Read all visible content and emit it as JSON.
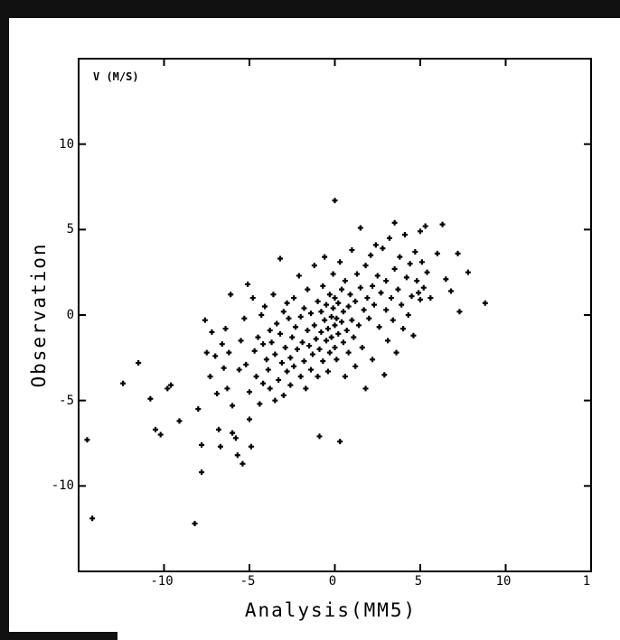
{
  "chart_data": {
    "type": "scatter",
    "title": "V (M/S)",
    "xlabel": "Analysis(MM5)",
    "ylabel": "Observation",
    "xlim": [
      -15,
      15
    ],
    "ylim": [
      -15,
      15
    ],
    "xticks": [
      -10,
      -5,
      0,
      5,
      10
    ],
    "xtick_labels": [
      "-10",
      "-5",
      "0",
      "5",
      "10"
    ],
    "edge_label": "1",
    "yticks": [
      -10,
      -5,
      0,
      5,
      10
    ],
    "ytick_labels": [
      "-10",
      "-5",
      "0",
      "5",
      "10"
    ],
    "grid": false,
    "marker_color": "#000000",
    "points": [
      [
        -14.5,
        -7.3
      ],
      [
        -14.2,
        -11.9
      ],
      [
        -12.4,
        -4.0
      ],
      [
        -11.5,
        -2.8
      ],
      [
        -10.8,
        -4.9
      ],
      [
        -10.5,
        -6.7
      ],
      [
        -10.2,
        -7.0
      ],
      [
        -9.8,
        -4.3
      ],
      [
        -9.6,
        -4.1
      ],
      [
        -9.1,
        -6.2
      ],
      [
        -8.2,
        -12.2
      ],
      [
        -8.0,
        -5.5
      ],
      [
        -7.8,
        -7.6
      ],
      [
        -7.8,
        -9.2
      ],
      [
        -7.6,
        -0.3
      ],
      [
        -7.5,
        -2.2
      ],
      [
        -7.3,
        -3.6
      ],
      [
        -7.2,
        -1.0
      ],
      [
        -7.0,
        -2.4
      ],
      [
        -6.9,
        -4.6
      ],
      [
        -6.8,
        -6.7
      ],
      [
        -6.7,
        -7.7
      ],
      [
        -6.6,
        -1.7
      ],
      [
        -6.5,
        -3.1
      ],
      [
        -6.4,
        -0.8
      ],
      [
        -6.3,
        -4.3
      ],
      [
        -6.2,
        -2.2
      ],
      [
        -6.1,
        1.2
      ],
      [
        -6.0,
        -5.3
      ],
      [
        -6.0,
        -6.9
      ],
      [
        -5.8,
        -7.2
      ],
      [
        -5.7,
        -8.2
      ],
      [
        -5.6,
        -3.2
      ],
      [
        -5.5,
        -1.5
      ],
      [
        -5.4,
        -8.7
      ],
      [
        -5.3,
        -0.2
      ],
      [
        -5.2,
        -2.9
      ],
      [
        -5.1,
        1.8
      ],
      [
        -5.0,
        -4.5
      ],
      [
        -5.0,
        -6.1
      ],
      [
        -4.9,
        -7.7
      ],
      [
        -4.8,
        1.0
      ],
      [
        -4.7,
        -2.1
      ],
      [
        -4.6,
        -3.6
      ],
      [
        -4.5,
        -1.3
      ],
      [
        -4.4,
        -5.2
      ],
      [
        -4.3,
        0.0
      ],
      [
        -4.2,
        -4.0
      ],
      [
        -4.2,
        -1.7
      ],
      [
        -4.1,
        0.5
      ],
      [
        -4.0,
        -2.6
      ],
      [
        -3.9,
        -3.2
      ],
      [
        -3.8,
        -4.3
      ],
      [
        -3.8,
        -0.9
      ],
      [
        -3.7,
        -1.6
      ],
      [
        -3.6,
        1.2
      ],
      [
        -3.5,
        -5.0
      ],
      [
        -3.5,
        -2.3
      ],
      [
        -3.4,
        -0.5
      ],
      [
        -3.3,
        -3.8
      ],
      [
        -3.2,
        3.3
      ],
      [
        -3.2,
        -1.1
      ],
      [
        -3.1,
        -2.8
      ],
      [
        -3.0,
        0.2
      ],
      [
        -3.0,
        -4.7
      ],
      [
        -2.9,
        -1.9
      ],
      [
        -2.8,
        -3.3
      ],
      [
        -2.8,
        0.7
      ],
      [
        -2.7,
        -0.2
      ],
      [
        -2.6,
        -2.5
      ],
      [
        -2.6,
        -4.1
      ],
      [
        -2.5,
        -1.3
      ],
      [
        -2.4,
        1.0
      ],
      [
        -2.4,
        -3.0
      ],
      [
        -2.3,
        -0.7
      ],
      [
        -2.2,
        -2.0
      ],
      [
        -2.1,
        2.3
      ],
      [
        -2.0,
        -3.6
      ],
      [
        -2.0,
        -0.1
      ],
      [
        -1.9,
        -1.6
      ],
      [
        -1.8,
        0.4
      ],
      [
        -1.8,
        -2.7
      ],
      [
        -1.7,
        -4.3
      ],
      [
        -1.6,
        -0.9
      ],
      [
        -1.6,
        1.5
      ],
      [
        -1.5,
        -1.8
      ],
      [
        -1.4,
        -3.2
      ],
      [
        -1.4,
        0.1
      ],
      [
        -1.3,
        -2.3
      ],
      [
        -1.2,
        2.9
      ],
      [
        -1.2,
        -0.6
      ],
      [
        -1.1,
        -1.4
      ],
      [
        -1.0,
        0.8
      ],
      [
        -1.0,
        -3.6
      ],
      [
        -0.9,
        -2.0
      ],
      [
        -0.9,
        -7.1
      ],
      [
        -0.8,
        0.2
      ],
      [
        -0.8,
        -1.0
      ],
      [
        -0.7,
        1.7
      ],
      [
        -0.7,
        -2.7
      ],
      [
        -0.6,
        -0.3
      ],
      [
        -0.6,
        3.4
      ],
      [
        -0.5,
        -1.5
      ],
      [
        -0.5,
        0.6
      ],
      [
        -0.4,
        -3.3
      ],
      [
        -0.4,
        -0.8
      ],
      [
        -0.3,
        1.2
      ],
      [
        -0.3,
        -2.2
      ],
      [
        -0.2,
        -0.1
      ],
      [
        -0.2,
        -1.3
      ],
      [
        -0.1,
        2.4
      ],
      [
        -0.1,
        0.4
      ],
      [
        0.0,
        6.7
      ],
      [
        0.0,
        -0.6
      ],
      [
        0.0,
        -1.9
      ],
      [
        0.0,
        1.0
      ],
      [
        0.1,
        -0.2
      ],
      [
        0.1,
        -2.6
      ],
      [
        0.2,
        0.7
      ],
      [
        0.2,
        -1.1
      ],
      [
        0.3,
        3.1
      ],
      [
        0.3,
        -7.4
      ],
      [
        0.4,
        -0.4
      ],
      [
        0.4,
        1.5
      ],
      [
        0.5,
        -1.6
      ],
      [
        0.5,
        0.2
      ],
      [
        0.6,
        -3.6
      ],
      [
        0.6,
        2.0
      ],
      [
        0.7,
        -0.9
      ],
      [
        0.8,
        0.5
      ],
      [
        0.8,
        -2.2
      ],
      [
        0.9,
        1.2
      ],
      [
        1.0,
        -0.3
      ],
      [
        1.0,
        3.8
      ],
      [
        1.1,
        -1.3
      ],
      [
        1.2,
        0.8
      ],
      [
        1.2,
        -3.0
      ],
      [
        1.3,
        2.4
      ],
      [
        1.4,
        -0.6
      ],
      [
        1.5,
        1.6
      ],
      [
        1.5,
        5.1
      ],
      [
        1.6,
        -1.9
      ],
      [
        1.7,
        0.3
      ],
      [
        1.8,
        2.9
      ],
      [
        1.8,
        -4.3
      ],
      [
        1.9,
        1.0
      ],
      [
        2.0,
        -0.2
      ],
      [
        2.1,
        3.5
      ],
      [
        2.2,
        1.7
      ],
      [
        2.2,
        -2.6
      ],
      [
        2.3,
        0.6
      ],
      [
        2.4,
        4.1
      ],
      [
        2.5,
        2.3
      ],
      [
        2.6,
        -0.7
      ],
      [
        2.7,
        1.3
      ],
      [
        2.8,
        3.9
      ],
      [
        2.9,
        -3.5
      ],
      [
        3.0,
        0.3
      ],
      [
        3.0,
        2.0
      ],
      [
        3.1,
        -1.5
      ],
      [
        3.2,
        4.5
      ],
      [
        3.3,
        1.0
      ],
      [
        3.4,
        -0.3
      ],
      [
        3.5,
        5.4
      ],
      [
        3.5,
        2.7
      ],
      [
        3.6,
        -2.2
      ],
      [
        3.7,
        1.5
      ],
      [
        3.8,
        3.4
      ],
      [
        3.9,
        0.6
      ],
      [
        4.0,
        -0.8
      ],
      [
        4.1,
        4.7
      ],
      [
        4.2,
        2.2
      ],
      [
        4.3,
        0.0
      ],
      [
        4.4,
        3.0
      ],
      [
        4.5,
        1.1
      ],
      [
        4.6,
        -1.2
      ],
      [
        4.7,
        3.7
      ],
      [
        4.8,
        2.0
      ],
      [
        4.9,
        1.3
      ],
      [
        5.0,
        0.9
      ],
      [
        5.0,
        4.9
      ],
      [
        5.1,
        3.1
      ],
      [
        5.2,
        1.6
      ],
      [
        5.3,
        5.2
      ],
      [
        5.4,
        2.5
      ],
      [
        5.6,
        1.0
      ],
      [
        6.0,
        3.6
      ],
      [
        6.3,
        5.3
      ],
      [
        6.5,
        2.1
      ],
      [
        6.8,
        1.4
      ],
      [
        7.2,
        3.6
      ],
      [
        7.3,
        0.2
      ],
      [
        7.8,
        2.5
      ],
      [
        8.8,
        0.7
      ]
    ]
  }
}
